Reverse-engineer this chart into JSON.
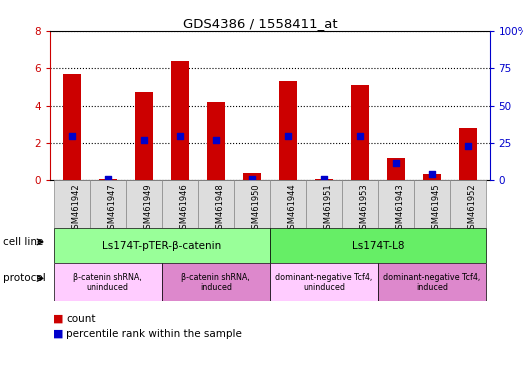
{
  "title": "GDS4386 / 1558411_at",
  "samples": [
    "GSM461942",
    "GSM461947",
    "GSM461949",
    "GSM461946",
    "GSM461948",
    "GSM461950",
    "GSM461944",
    "GSM461951",
    "GSM461953",
    "GSM461943",
    "GSM461945",
    "GSM461952"
  ],
  "counts": [
    5.7,
    0.08,
    4.75,
    6.4,
    4.2,
    0.4,
    5.3,
    0.08,
    5.1,
    1.2,
    0.35,
    2.8
  ],
  "percentile_ranks": [
    30,
    1,
    27,
    30,
    27,
    1,
    30,
    1,
    30,
    12,
    4,
    23
  ],
  "ylim_left": [
    0,
    8
  ],
  "ylim_right": [
    0,
    100
  ],
  "yticks_left": [
    0,
    2,
    4,
    6,
    8
  ],
  "yticks_right": [
    0,
    25,
    50,
    75,
    100
  ],
  "yticklabels_right": [
    "0",
    "25",
    "50",
    "75",
    "100%"
  ],
  "bar_color": "#cc0000",
  "dot_color": "#0000cc",
  "bar_width": 0.5,
  "cell_line_groups": [
    {
      "label": "Ls174T-pTER-β-catenin",
      "start": 0,
      "end": 6,
      "color": "#99ff99"
    },
    {
      "label": "Ls174T-L8",
      "start": 6,
      "end": 12,
      "color": "#66ee66"
    }
  ],
  "protocol_groups": [
    {
      "label": "β-catenin shRNA,\nuninduced",
      "start": 0,
      "end": 3,
      "color": "#ffccff"
    },
    {
      "label": "β-catenin shRNA,\ninduced",
      "start": 3,
      "end": 6,
      "color": "#dd88cc"
    },
    {
      "label": "dominant-negative Tcf4,\nuninduced",
      "start": 6,
      "end": 9,
      "color": "#ffccff"
    },
    {
      "label": "dominant-negative Tcf4,\ninduced",
      "start": 9,
      "end": 12,
      "color": "#dd88cc"
    }
  ],
  "cell_line_label": "cell line",
  "protocol_label": "protocol",
  "legend_count_label": "count",
  "legend_pct_label": "percentile rank within the sample",
  "background_color": "#ffffff",
  "plot_bg_color": "#ffffff",
  "left_axis_color": "#cc0000",
  "right_axis_color": "#0000cc",
  "xtick_bg_color": "#dddddd",
  "border_color": "#000000"
}
